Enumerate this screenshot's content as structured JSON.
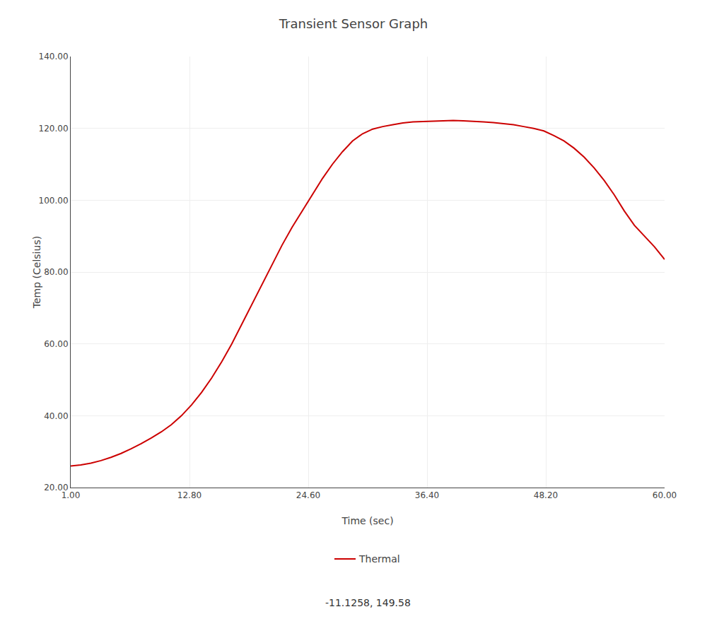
{
  "chart_data": {
    "type": "line",
    "title": "Transient Sensor Graph",
    "xlabel": "Time (sec)",
    "ylabel": "Temp (Celsius)",
    "annotations": [
      "-11.1258, 149.58"
    ],
    "x": [
      1,
      2,
      3,
      4,
      5,
      6,
      7,
      8,
      9,
      10,
      11,
      12,
      13,
      14,
      15,
      16,
      17,
      18,
      19,
      20,
      21,
      22,
      23,
      24,
      25,
      26,
      27,
      28,
      29,
      30,
      31,
      32,
      33,
      34,
      35,
      36,
      37,
      38,
      39,
      40,
      41,
      42,
      43,
      44,
      45,
      46,
      47,
      48,
      49,
      50,
      51,
      52,
      53,
      54,
      55,
      56,
      57,
      58,
      59,
      60
    ],
    "series": [
      {
        "name": "Thermal",
        "color": "#cc0000",
        "line_style": "solid",
        "values": [
          26.0,
          26.3,
          26.8,
          27.5,
          28.4,
          29.5,
          30.8,
          32.2,
          33.8,
          35.5,
          37.5,
          40.0,
          43.0,
          46.5,
          50.5,
          55.0,
          60.0,
          65.5,
          71.0,
          76.5,
          82.0,
          87.5,
          92.5,
          97.0,
          101.5,
          106.0,
          110.0,
          113.5,
          116.5,
          118.5,
          119.8,
          120.5,
          121.0,
          121.5,
          121.8,
          121.9,
          122.0,
          122.1,
          122.2,
          122.1,
          122.0,
          121.8,
          121.6,
          121.3,
          121.0,
          120.5,
          120.0,
          119.3,
          118.0,
          116.5,
          114.5,
          112.0,
          109.0,
          105.5,
          101.5,
          97.0,
          93.0,
          90.0,
          87.0,
          83.5
        ]
      }
    ],
    "xlim": [
      1.0,
      60.0
    ],
    "ylim": [
      20.0,
      140.0
    ],
    "xticks": [
      {
        "value": 1.0,
        "label": "1.00"
      },
      {
        "value": 12.8,
        "label": "12.80"
      },
      {
        "value": 24.6,
        "label": "24.60"
      },
      {
        "value": 36.4,
        "label": "36.40"
      },
      {
        "value": 48.2,
        "label": "48.20"
      },
      {
        "value": 60.0,
        "label": "60.00"
      }
    ],
    "yticks": [
      {
        "value": 20.0,
        "label": "20.00"
      },
      {
        "value": 40.0,
        "label": "40.00"
      },
      {
        "value": 60.0,
        "label": "60.00"
      },
      {
        "value": 80.0,
        "label": "80.00"
      },
      {
        "value": 100.0,
        "label": "100.00"
      },
      {
        "value": 120.0,
        "label": "120.00"
      },
      {
        "value": 140.0,
        "label": "140.00"
      }
    ],
    "grid": true,
    "legend": "bottom"
  }
}
